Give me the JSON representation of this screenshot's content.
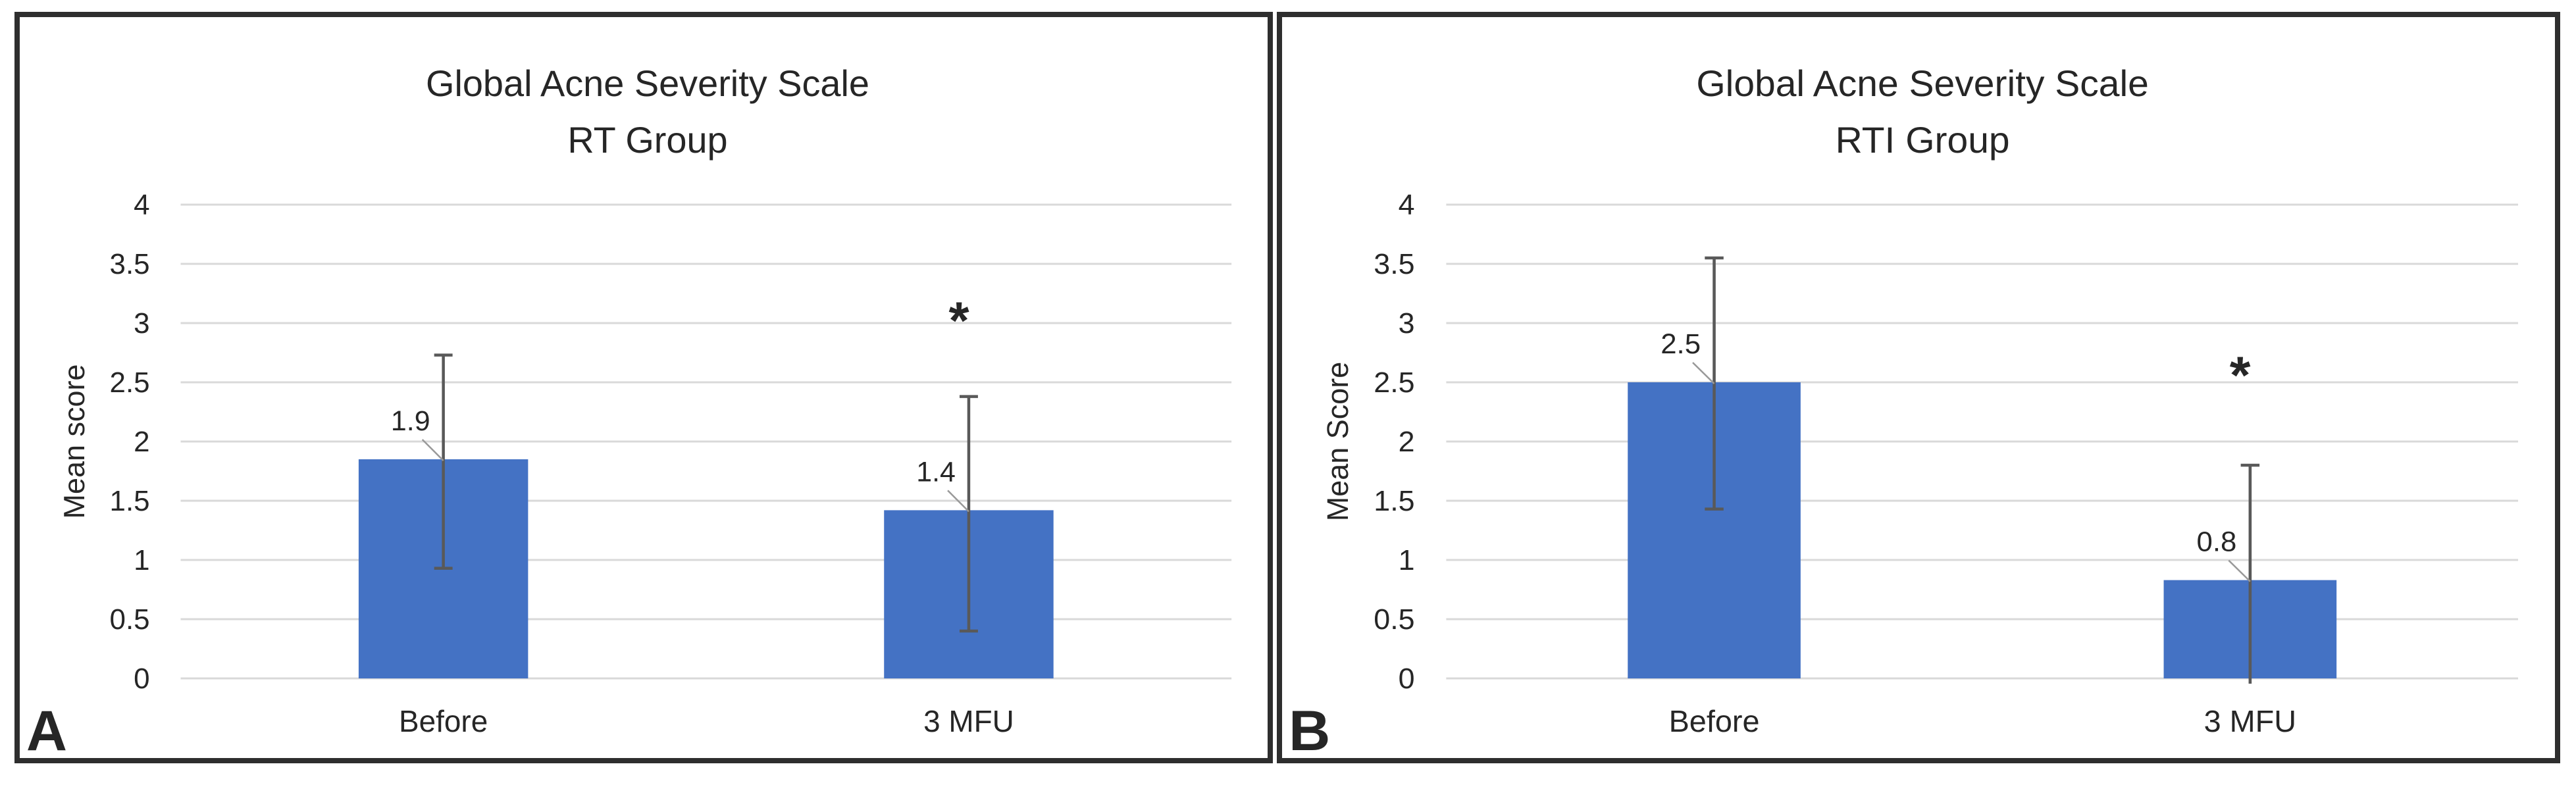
{
  "figure": {
    "description": "Two-panel bar chart figure comparing Global Acne Severity Scale mean scores before treatment and at 3-month follow-up",
    "panel_letters": [
      "A",
      "B"
    ]
  },
  "colors": {
    "bar": "#4472C4",
    "gridline": "#D9D9D9",
    "error_bar": "#595959",
    "leader_line": "#999999",
    "text": "#262626",
    "panel_border": "#2E2E2E",
    "background": "#FFFFFF"
  },
  "chart_data": [
    {
      "type": "bar",
      "panel_letter": "A",
      "title": "Global Acne Severity Scale RT Group",
      "title_lines": [
        "Global Acne Severity Scale",
        "RT Group"
      ],
      "xlabel": "",
      "ylabel": "Mean score",
      "categories": [
        "Before",
        "3 MFU"
      ],
      "values": [
        1.85,
        1.42
      ],
      "value_labels": [
        "1.9",
        "1.4"
      ],
      "error_bars": [
        {
          "low": 0.93,
          "high": 2.73
        },
        {
          "low": 0.4,
          "high": 2.38
        }
      ],
      "significance": [
        {
          "category_index": 1,
          "marker": "*",
          "y": 3.08
        }
      ],
      "ylim": [
        0,
        4
      ],
      "ytick_step": 0.5,
      "grid": true,
      "legend_position": "none"
    },
    {
      "type": "bar",
      "panel_letter": "B",
      "title": "Global Acne Severity Scale RTI Group",
      "title_lines": [
        "Global Acne Severity Scale",
        "RTI Group"
      ],
      "xlabel": "",
      "ylabel": "Mean Score",
      "categories": [
        "Before",
        "3 MFU"
      ],
      "values": [
        2.5,
        0.83
      ],
      "value_labels": [
        "2.5",
        "0.8"
      ],
      "error_bars": [
        {
          "low": 1.43,
          "high": 3.55
        },
        {
          "low": 0,
          "high": 1.8
        }
      ],
      "significance": [
        {
          "category_index": 1,
          "marker": "*",
          "y": 2.62
        }
      ],
      "ylim": [
        0,
        4
      ],
      "ytick_step": 0.5,
      "grid": true,
      "legend_position": "none"
    }
  ]
}
